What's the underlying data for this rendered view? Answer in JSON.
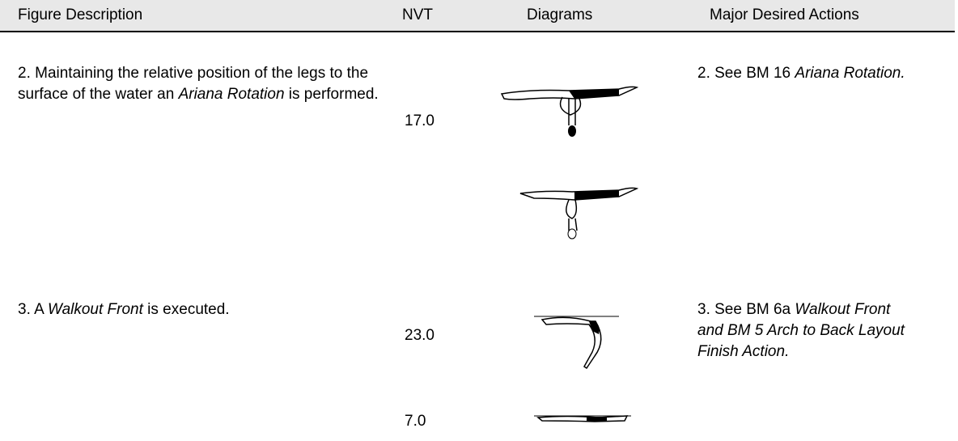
{
  "header": {
    "columns": [
      "Figure Description",
      "NVT",
      "Diagrams",
      "Major Desired Actions"
    ]
  },
  "rows": [
    {
      "description": [
        "2. Maintaining the relative position of the legs to the surface of the water an ",
        "Ariana Rotation",
        " is performed."
      ],
      "nvt": [
        "17.0"
      ],
      "actions": [
        "2. See BM 16 ",
        "Ariana Rotation."
      ]
    },
    {
      "description": [
        "3. A ",
        "Walkout Front",
        " is executed."
      ],
      "nvt": [
        "23.0",
        "7.0"
      ],
      "actions": [
        "3. See BM 6a ",
        "Walkout Front and BM 5 Arch to Back Layout Finish Action."
      ]
    }
  ]
}
